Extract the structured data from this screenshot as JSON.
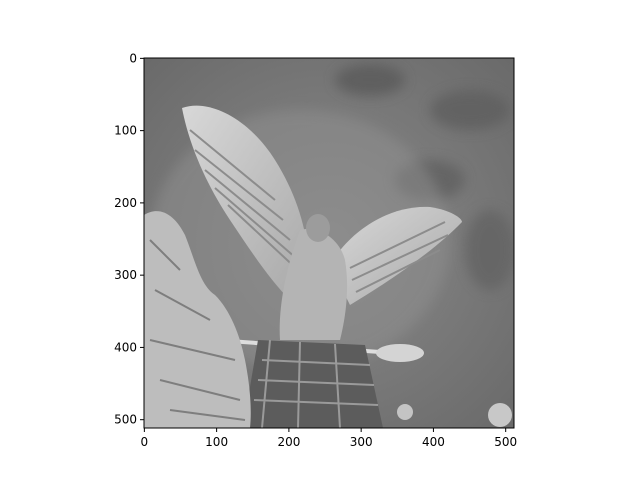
{
  "chart_data": {
    "type": "heatmap",
    "title": "",
    "xlabel": "",
    "ylabel": "",
    "colormap": "grayscale",
    "xlim": [
      0,
      511
    ],
    "ylim": [
      511,
      0
    ],
    "x_ticks": [
      {
        "value": 0,
        "label": "0"
      },
      {
        "value": 100,
        "label": "100"
      },
      {
        "value": 200,
        "label": "200"
      },
      {
        "value": 300,
        "label": "300"
      },
      {
        "value": 400,
        "label": "400"
      },
      {
        "value": 500,
        "label": "500"
      }
    ],
    "y_ticks": [
      {
        "value": 0,
        "label": "0"
      },
      {
        "value": 100,
        "label": "100"
      },
      {
        "value": 200,
        "label": "200"
      },
      {
        "value": 300,
        "label": "300"
      },
      {
        "value": 400,
        "label": "400"
      },
      {
        "value": 500,
        "label": "500"
      }
    ],
    "image_content": "grayscale photo of an eagle statue with spread wings atop a stone base, foliage at lower left"
  }
}
